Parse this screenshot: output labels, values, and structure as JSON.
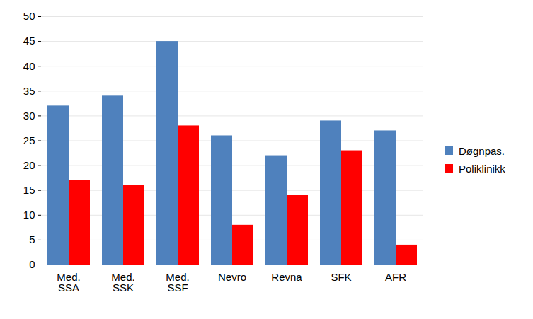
{
  "chart_data": {
    "type": "bar",
    "categories": [
      "Med. SSA",
      "Med. SSK",
      "Med. SSF",
      "Nevro",
      "Revna",
      "SFK",
      "AFR"
    ],
    "series": [
      {
        "name": "Døgnpas.",
        "color": "#4f81bd",
        "values": [
          32,
          34,
          45,
          26,
          22,
          29,
          27
        ]
      },
      {
        "name": "Poliklinikk",
        "color": "#ff0000",
        "values": [
          17,
          16,
          28,
          8,
          14,
          23,
          4
        ]
      }
    ],
    "ylim": [
      0,
      50
    ],
    "yticks": [
      0,
      5,
      10,
      15,
      20,
      25,
      30,
      35,
      40,
      45,
      50
    ],
    "grid": true,
    "legend": "right"
  }
}
